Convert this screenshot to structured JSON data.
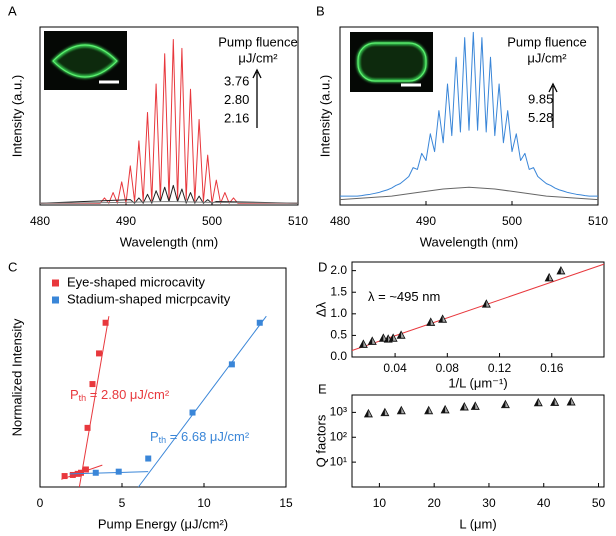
{
  "chart_data": [
    {
      "panel_label": "A",
      "type": "line",
      "xlabel": "Wavelength (nm)",
      "ylabel": "Intensity (a.u.)",
      "xlim": [
        480,
        510
      ],
      "ylim": [
        0,
        1
      ],
      "xticks": [
        480,
        490,
        500,
        510
      ],
      "legend": {
        "title": "Pump fluence",
        "unit": "μJ/cm²"
      },
      "series": [
        {
          "name": "3.76",
          "color": "#e8383d",
          "x": [
            480,
            480.5,
            481,
            481.5,
            482,
            482.5,
            483,
            483.5,
            484,
            484.5,
            485,
            485.5,
            486,
            486.5,
            487,
            487.5,
            488,
            488.5,
            489,
            489.5,
            490,
            490.5,
            491,
            491.5,
            492,
            492.5,
            493,
            493.5,
            494,
            494.5,
            495,
            495.5,
            496,
            496.5,
            497,
            497.5,
            498,
            498.5,
            499,
            499.5,
            500,
            500.5,
            501,
            501.5,
            502,
            502.5,
            503,
            503.5,
            504,
            504.5,
            505,
            505.5,
            506,
            506.5,
            507,
            507.5,
            508,
            508.5,
            509,
            509.5,
            510
          ],
          "values": [
            0.01,
            0.01,
            0.01,
            0.01,
            0.01,
            0.01,
            0.01,
            0.01,
            0.01,
            0.01,
            0.01,
            0.01,
            0.01,
            0.01,
            0.01,
            0.04,
            0.01,
            0.07,
            0.01,
            0.13,
            0.01,
            0.22,
            0.02,
            0.36,
            0.02,
            0.52,
            0.02,
            0.68,
            0.03,
            0.85,
            0.03,
            0.93,
            0.03,
            0.88,
            0.03,
            0.65,
            0.02,
            0.48,
            0.02,
            0.28,
            0.01,
            0.14,
            0.01,
            0.07,
            0.01,
            0.04,
            0.01,
            0.01,
            0.01,
            0.01,
            0.01,
            0.01,
            0.01,
            0.01,
            0.01,
            0.01,
            0.01,
            0.01,
            0.01,
            0.01,
            0.01
          ]
        },
        {
          "name": "2.80",
          "color": "#222222",
          "x": [
            480,
            490.5,
            491,
            491.5,
            492,
            492.5,
            493,
            493.5,
            494,
            494.5,
            495,
            495.5,
            496,
            496.5,
            497,
            497.5,
            498,
            498.5,
            499,
            499.5,
            500,
            500.5,
            510
          ],
          "values": [
            0.01,
            0.03,
            0.01,
            0.04,
            0.01,
            0.06,
            0.01,
            0.08,
            0.02,
            0.1,
            0.02,
            0.11,
            0.02,
            0.09,
            0.01,
            0.07,
            0.01,
            0.05,
            0.01,
            0.03,
            0.01,
            0.02,
            0.01
          ]
        },
        {
          "name": "2.16",
          "color": "#808080",
          "x": [
            480,
            490,
            495,
            500,
            510
          ],
          "values": [
            0.01,
            0.015,
            0.02,
            0.015,
            0.01
          ]
        }
      ]
    },
    {
      "panel_label": "B",
      "type": "line",
      "xlabel": "Wavelength (nm)",
      "ylabel": "Intensity (a.u.)",
      "xlim": [
        480,
        510
      ],
      "ylim": [
        0,
        1
      ],
      "xticks": [
        480,
        490,
        500,
        510
      ],
      "legend": {
        "title": "Pump fluence",
        "unit": "μJ/cm²"
      },
      "series": [
        {
          "name": "9.85",
          "color": "#3a86d8",
          "x": [
            480,
            480.5,
            481,
            481.5,
            482,
            482.5,
            483,
            483.5,
            484,
            484.5,
            485,
            485.5,
            486,
            486.5,
            487,
            487.5,
            488,
            488.5,
            489,
            489.5,
            490,
            490.5,
            491,
            491.5,
            492,
            492.5,
            493,
            493.5,
            494,
            494.5,
            495,
            495.5,
            496,
            496.5,
            497,
            497.5,
            498,
            498.5,
            499,
            499.5,
            500,
            500.5,
            501,
            501.5,
            502,
            502.5,
            503,
            503.5,
            504,
            504.5,
            505,
            505.5,
            506,
            506.5,
            507,
            507.5,
            508,
            508.5,
            509,
            509.5,
            510
          ],
          "values": [
            0.05,
            0.05,
            0.05,
            0.05,
            0.05,
            0.053,
            0.057,
            0.06,
            0.065,
            0.07,
            0.078,
            0.085,
            0.095,
            0.11,
            0.12,
            0.14,
            0.16,
            0.21,
            0.2,
            0.29,
            0.25,
            0.4,
            0.3,
            0.53,
            0.35,
            0.68,
            0.39,
            0.83,
            0.41,
            0.94,
            0.42,
            0.97,
            0.42,
            0.94,
            0.41,
            0.83,
            0.39,
            0.68,
            0.35,
            0.53,
            0.3,
            0.4,
            0.25,
            0.29,
            0.2,
            0.21,
            0.16,
            0.14,
            0.12,
            0.11,
            0.095,
            0.085,
            0.078,
            0.07,
            0.065,
            0.06,
            0.057,
            0.053,
            0.05,
            0.05,
            0.05
          ]
        },
        {
          "name": "5.28",
          "color": "#666666",
          "x": [
            480,
            483,
            486,
            489,
            492,
            495,
            498,
            501,
            504,
            507,
            510
          ],
          "values": [
            0.03,
            0.04,
            0.05,
            0.07,
            0.09,
            0.1,
            0.09,
            0.07,
            0.05,
            0.04,
            0.03
          ]
        }
      ]
    },
    {
      "panel_label": "C",
      "type": "scatter",
      "xlabel": "Pump Energy (μJ/cm²)",
      "ylabel": "Normalized Intensity",
      "xlim": [
        0,
        15
      ],
      "ylim": [
        0,
        1
      ],
      "xticks": [
        0,
        5,
        10,
        15
      ],
      "legend_corner": "upper left",
      "series": [
        {
          "name": "Eye-shaped microcavity",
          "color": "#e8383d",
          "marker": "square",
          "x": [
            1.5,
            2.0,
            2.3,
            2.5,
            2.8,
            2.9,
            3.2,
            3.6,
            4.0
          ],
          "values": [
            0.05,
            0.055,
            0.06,
            0.065,
            0.08,
            0.27,
            0.47,
            0.61,
            0.75
          ],
          "fits": [
            {
              "x": [
                2.4,
                4.2
              ],
              "y": [
                0,
                0.78
              ]
            },
            {
              "x": [
                1.3,
                3.8
              ],
              "y": [
                0.035,
                0.1
              ]
            }
          ]
        },
        {
          "name": "Stadium-shaped micrpcavity",
          "color": "#3a86d8",
          "marker": "square",
          "x": [
            3.4,
            4.8,
            6.6,
            9.3,
            11.7,
            13.4
          ],
          "values": [
            0.065,
            0.07,
            0.13,
            0.34,
            0.56,
            0.75
          ],
          "fits": [
            {
              "x": [
                1.8,
                6.6
              ],
              "y": [
                0.06,
                0.07
              ]
            },
            {
              "x": [
                6.0,
                13.8
              ],
              "y": [
                0,
                0.78
              ]
            }
          ]
        }
      ],
      "annotations": [
        {
          "label": "P",
          "subscript": "th",
          "text": " = 2.80 μJ/cm²",
          "color": "#e8383d"
        },
        {
          "label": "P",
          "subscript": "th",
          "text": " = 6.68 μJ/cm²",
          "color": "#3a86d8"
        }
      ]
    },
    {
      "panel_label": "D",
      "type": "scatter",
      "xlabel": "1/L (μm⁻¹)",
      "ylabel": "Δλ",
      "xlim": [
        0.007,
        0.2
      ],
      "ylim": [
        0,
        2.2
      ],
      "xticks": [
        0.04,
        0.08,
        0.12,
        0.16
      ],
      "yticks": [
        {
          "value": 0,
          "label": "0.0"
        },
        0.5,
        {
          "value": 1,
          "label": "1.0"
        },
        1.5,
        {
          "value": 2,
          "label": "2.0"
        }
      ],
      "series": [
        {
          "color": "#111111",
          "marker": "triangle",
          "x": [
            0.0157,
            0.0225,
            0.031,
            0.0347,
            0.0385,
            0.0446,
            0.0673,
            0.0764,
            0.1099,
            0.158,
            0.167
          ],
          "values": [
            0.3,
            0.37,
            0.44,
            0.42,
            0.44,
            0.51,
            0.81,
            0.88,
            1.23,
            1.84,
            2.0
          ],
          "fits": [
            {
              "color": "#e8383d",
              "x": [
                0.007,
                0.2
              ],
              "y": [
                0.15,
                2.15
              ]
            }
          ]
        }
      ],
      "annotations": [
        {
          "text": "λ = ~495 nm",
          "color": "#000000"
        }
      ]
    },
    {
      "panel_label": "E",
      "type": "scatter",
      "xlabel": "L (μm)",
      "ylabel": "Q factors",
      "xlim": [
        5,
        51
      ],
      "ylim": [
        1,
        5000
      ],
      "ylog": true,
      "xticks": [
        10,
        20,
        30,
        40,
        50
      ],
      "yticks": [
        {
          "value": 10,
          "label": "10¹"
        },
        {
          "value": 100,
          "label": "10²"
        },
        {
          "value": 1000,
          "label": "10³"
        }
      ],
      "series": [
        {
          "color": "#111111",
          "marker": "triangle",
          "x": [
            8,
            11,
            14,
            19,
            22,
            25.5,
            27.5,
            33,
            39,
            42,
            45
          ],
          "values": [
            900,
            1000,
            1200,
            1200,
            1300,
            1700,
            1800,
            2100,
            2500,
            2600,
            2700
          ]
        }
      ]
    }
  ]
}
